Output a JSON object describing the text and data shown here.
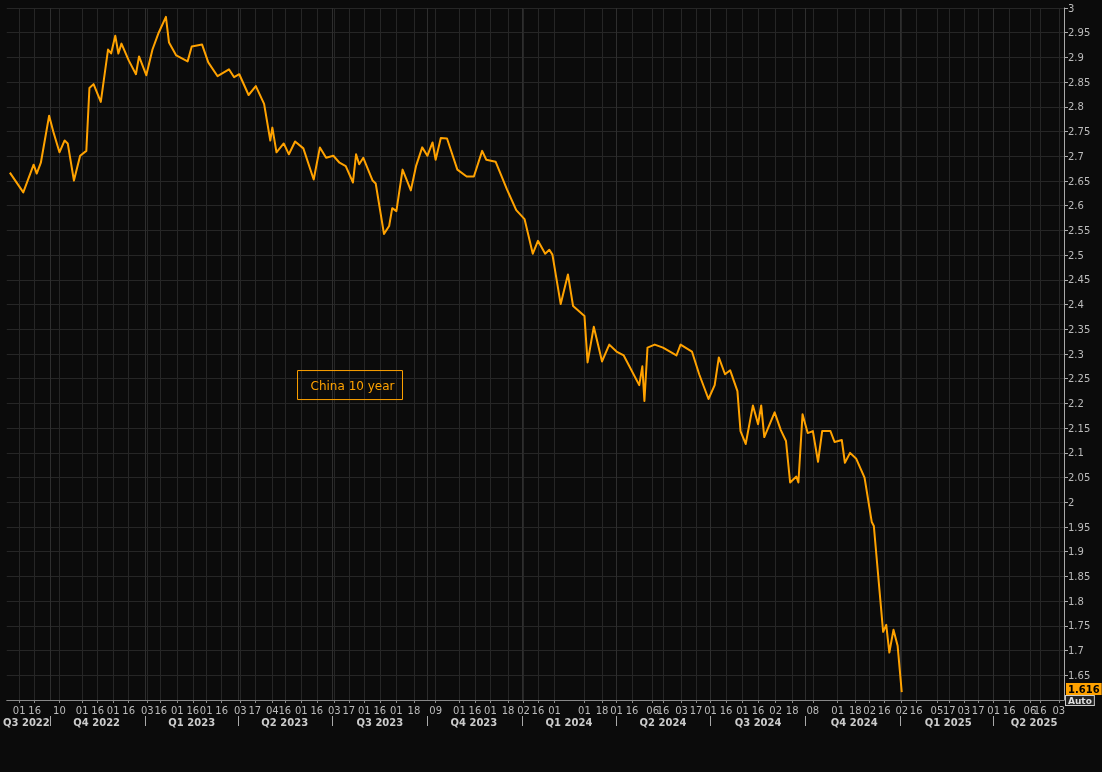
{
  "chart_data": {
    "type": "line",
    "x": [
      "2022-08-23",
      "2022-09-05",
      "2022-09-15",
      "2022-09-18",
      "2022-09-22",
      "2022-09-30",
      "2022-10-04",
      "2022-10-10",
      "2022-10-15",
      "2022-10-18",
      "2022-10-24",
      "2022-10-30",
      "2022-11-05",
      "2022-11-08",
      "2022-11-12",
      "2022-11-19",
      "2022-11-26",
      "2022-11-29",
      "2022-12-03",
      "2022-12-06",
      "2022-12-09",
      "2022-12-16",
      "2022-12-23",
      "2022-12-26",
      "2023-01-02",
      "2023-01-08",
      "2023-01-14",
      "2023-01-21",
      "2023-01-24",
      "2023-01-31",
      "2023-02-11",
      "2023-02-15",
      "2023-02-25",
      "2023-03-03",
      "2023-03-12",
      "2023-03-23",
      "2023-03-28",
      "2023-04-02",
      "2023-04-11",
      "2023-04-18",
      "2023-04-26",
      "2023-05-02",
      "2023-05-04",
      "2023-05-08",
      "2023-05-15",
      "2023-05-20",
      "2023-05-26",
      "2023-06-03",
      "2023-06-13",
      "2023-06-19",
      "2023-06-25",
      "2023-07-02",
      "2023-07-08",
      "2023-07-14",
      "2023-07-21",
      "2023-07-24",
      "2023-07-27",
      "2023-07-31",
      "2023-08-09",
      "2023-08-12",
      "2023-08-20",
      "2023-08-25",
      "2023-08-28",
      "2023-09-01",
      "2023-09-07",
      "2023-09-15",
      "2023-09-20",
      "2023-09-26",
      "2023-10-01",
      "2023-10-06",
      "2023-10-09",
      "2023-10-14",
      "2023-10-20",
      "2023-10-30",
      "2023-11-08",
      "2023-11-15",
      "2023-11-23",
      "2023-11-27",
      "2023-12-06",
      "2023-12-17",
      "2023-12-26",
      "2024-01-03",
      "2024-01-11",
      "2024-01-16",
      "2024-01-23",
      "2024-01-27",
      "2024-01-30",
      "2024-02-07",
      "2024-02-14",
      "2024-02-19",
      "2024-03-01",
      "2024-03-04",
      "2024-03-10",
      "2024-03-18",
      "2024-03-25",
      "2024-04-01",
      "2024-04-08",
      "2024-04-23",
      "2024-04-26",
      "2024-04-28",
      "2024-05-01",
      "2024-05-08",
      "2024-05-16",
      "2024-05-29",
      "2024-06-02",
      "2024-06-13",
      "2024-06-20",
      "2024-06-29",
      "2024-07-05",
      "2024-07-09",
      "2024-07-15",
      "2024-07-20",
      "2024-07-27",
      "2024-07-30",
      "2024-08-04",
      "2024-08-11",
      "2024-08-16",
      "2024-08-19",
      "2024-08-22",
      "2024-09-01",
      "2024-09-07",
      "2024-09-12",
      "2024-09-16",
      "2024-09-22",
      "2024-09-24",
      "2024-09-28",
      "2024-10-03",
      "2024-10-08",
      "2024-10-13",
      "2024-10-17",
      "2024-10-25",
      "2024-10-29",
      "2024-11-05",
      "2024-11-08",
      "2024-11-13",
      "2024-11-19",
      "2024-11-27",
      "2024-12-04",
      "2024-12-06",
      "2024-12-15",
      "2024-12-18",
      "2024-12-21",
      "2024-12-25",
      "2024-12-29",
      "2025-01-02"
    ],
    "series": [
      {
        "name": "China 10 year",
        "color": "#ffa200",
        "values": [
          2.667,
          2.627,
          2.683,
          2.665,
          2.687,
          2.782,
          2.75,
          2.708,
          2.732,
          2.726,
          2.651,
          2.701,
          2.711,
          2.838,
          2.846,
          2.81,
          2.916,
          2.908,
          2.944,
          2.908,
          2.928,
          2.894,
          2.866,
          2.902,
          2.864,
          2.916,
          2.95,
          2.982,
          2.93,
          2.904,
          2.892,
          2.922,
          2.926,
          2.89,
          2.862,
          2.876,
          2.86,
          2.866,
          2.824,
          2.842,
          2.806,
          2.732,
          2.758,
          2.708,
          2.726,
          2.704,
          2.73,
          2.716,
          2.653,
          2.718,
          2.697,
          2.701,
          2.687,
          2.68,
          2.647,
          2.704,
          2.684,
          2.697,
          2.651,
          2.645,
          2.543,
          2.559,
          2.595,
          2.589,
          2.673,
          2.631,
          2.68,
          2.718,
          2.701,
          2.728,
          2.693,
          2.737,
          2.736,
          2.673,
          2.659,
          2.659,
          2.711,
          2.693,
          2.689,
          2.633,
          2.591,
          2.573,
          2.503,
          2.529,
          2.503,
          2.511,
          2.501,
          2.401,
          2.461,
          2.397,
          2.377,
          2.283,
          2.355,
          2.285,
          2.319,
          2.305,
          2.297,
          2.237,
          2.275,
          2.205,
          2.313,
          2.319,
          2.313,
          2.297,
          2.319,
          2.305,
          2.259,
          2.209,
          2.237,
          2.293,
          2.259,
          2.267,
          2.225,
          2.144,
          2.118,
          2.196,
          2.158,
          2.196,
          2.132,
          2.182,
          2.146,
          2.124,
          2.04,
          2.052,
          2.04,
          2.178,
          2.14,
          2.144,
          2.082,
          2.144,
          2.144,
          2.122,
          2.126,
          2.08,
          2.1,
          2.088,
          2.05,
          1.96,
          1.952,
          1.738,
          1.752,
          1.696,
          1.742,
          1.71,
          1.616
        ]
      }
    ],
    "xlim": [
      "2022-08-20",
      "2025-06-08"
    ],
    "xticks": [
      {
        "value": "2022-09-01",
        "label": "01"
      },
      {
        "value": "2022-09-16",
        "label": "16"
      },
      {
        "value": "2022-10-10",
        "label": "10"
      },
      {
        "value": "2022-11-01",
        "label": "01"
      },
      {
        "value": "2022-11-16",
        "label": "16"
      },
      {
        "value": "2022-12-01",
        "label": "01"
      },
      {
        "value": "2022-12-16",
        "label": "16"
      },
      {
        "value": "2023-01-03",
        "label": "03"
      },
      {
        "value": "2023-01-16",
        "label": "16"
      },
      {
        "value": "2023-02-01",
        "label": "01"
      },
      {
        "value": "2023-02-16",
        "label": "16"
      },
      {
        "value": "2023-03-01",
        "label": "01"
      },
      {
        "value": "2023-03-16",
        "label": "16"
      },
      {
        "value": "2023-04-03",
        "label": "03"
      },
      {
        "value": "2023-04-17",
        "label": "17"
      },
      {
        "value": "2023-05-04",
        "label": "04"
      },
      {
        "value": "2023-05-16",
        "label": "16"
      },
      {
        "value": "2023-06-01",
        "label": "01"
      },
      {
        "value": "2023-06-16",
        "label": "16"
      },
      {
        "value": "2023-07-03",
        "label": "03"
      },
      {
        "value": "2023-07-17",
        "label": "17"
      },
      {
        "value": "2023-08-01",
        "label": "01"
      },
      {
        "value": "2023-08-16",
        "label": "16"
      },
      {
        "value": "2023-09-01",
        "label": "01"
      },
      {
        "value": "2023-09-18",
        "label": "18"
      },
      {
        "value": "2023-10-09",
        "label": "09"
      },
      {
        "value": "2023-11-01",
        "label": "01"
      },
      {
        "value": "2023-11-16",
        "label": "16"
      },
      {
        "value": "2023-12-01",
        "label": "01"
      },
      {
        "value": "2023-12-18",
        "label": "18"
      },
      {
        "value": "2024-01-02",
        "label": "02"
      },
      {
        "value": "2024-01-16",
        "label": "16"
      },
      {
        "value": "2024-02-01",
        "label": "01"
      },
      {
        "value": "2024-03-01",
        "label": "01"
      },
      {
        "value": "2024-03-18",
        "label": "18"
      },
      {
        "value": "2024-04-01",
        "label": "01"
      },
      {
        "value": "2024-04-16",
        "label": "16"
      },
      {
        "value": "2024-05-06",
        "label": "06"
      },
      {
        "value": "2024-05-16",
        "label": "16"
      },
      {
        "value": "2024-06-03",
        "label": "03"
      },
      {
        "value": "2024-06-17",
        "label": "17"
      },
      {
        "value": "2024-07-01",
        "label": "01"
      },
      {
        "value": "2024-07-16",
        "label": "16"
      },
      {
        "value": "2024-08-01",
        "label": "01"
      },
      {
        "value": "2024-08-16",
        "label": "16"
      },
      {
        "value": "2024-09-02",
        "label": "02"
      },
      {
        "value": "2024-09-18",
        "label": "18"
      },
      {
        "value": "2024-10-08",
        "label": "08"
      },
      {
        "value": "2024-11-01",
        "label": "01"
      },
      {
        "value": "2024-11-18",
        "label": "18"
      },
      {
        "value": "2024-12-02",
        "label": "02"
      },
      {
        "value": "2024-12-16",
        "label": "16"
      },
      {
        "value": "2025-01-02",
        "label": "02"
      },
      {
        "value": "2025-01-16",
        "label": "16"
      },
      {
        "value": "2025-02-05",
        "label": "05"
      },
      {
        "value": "2025-02-17",
        "label": "17"
      },
      {
        "value": "2025-03-03",
        "label": "03"
      },
      {
        "value": "2025-03-17",
        "label": "17"
      },
      {
        "value": "2025-04-01",
        "label": "01"
      },
      {
        "value": "2025-04-16",
        "label": "16"
      },
      {
        "value": "2025-05-06",
        "label": "06"
      },
      {
        "value": "2025-05-16",
        "label": "16"
      },
      {
        "value": "2025-06-03",
        "label": "03"
      }
    ],
    "x2lim": [
      "2022-08-20",
      "2025-06-08"
    ],
    "x2ticks": [
      {
        "value": "2022-09-08",
        "label": "Q3 2022"
      },
      {
        "value": "2022-10-01",
        "label": null
      },
      {
        "value": "2022-11-15",
        "label": "Q4 2022"
      },
      {
        "value": "2023-01-01",
        "label": null
      },
      {
        "value": "2023-02-15",
        "label": "Q1 2023"
      },
      {
        "value": "2023-04-01",
        "label": null
      },
      {
        "value": "2023-05-16",
        "label": "Q2 2023"
      },
      {
        "value": "2023-07-01",
        "label": null
      },
      {
        "value": "2023-08-16",
        "label": "Q3 2023"
      },
      {
        "value": "2023-10-01",
        "label": null
      },
      {
        "value": "2023-11-15",
        "label": "Q4 2023"
      },
      {
        "value": "2024-01-01",
        "label": null
      },
      {
        "value": "2024-02-15",
        "label": "Q1 2024"
      },
      {
        "value": "2024-04-01",
        "label": null
      },
      {
        "value": "2024-05-16",
        "label": "Q2 2024"
      },
      {
        "value": "2024-07-01",
        "label": null
      },
      {
        "value": "2024-08-16",
        "label": "Q3 2024"
      },
      {
        "value": "2024-10-01",
        "label": null
      },
      {
        "value": "2024-11-17",
        "label": "Q4 2024"
      },
      {
        "value": "2025-01-01",
        "label": null
      },
      {
        "value": "2025-02-16",
        "label": "Q1 2025"
      },
      {
        "value": "2025-04-01",
        "label": null
      },
      {
        "value": "2025-05-10",
        "label": "Q2 2025"
      }
    ],
    "ylim": [
      1.6,
      3
    ],
    "yticks": [
      1.65,
      1.7,
      1.75,
      1.8,
      1.85,
      1.9,
      1.95,
      2,
      2.05,
      2.1,
      2.15,
      2.2,
      2.25,
      2.3,
      2.35,
      2.4,
      2.45,
      2.5,
      2.55,
      2.6,
      2.65,
      2.7,
      2.75,
      2.8,
      2.85,
      2.9,
      2.95,
      3
    ],
    "grid": true,
    "legend": "left",
    "annotations": [
      "1.616",
      "Auto"
    ]
  }
}
